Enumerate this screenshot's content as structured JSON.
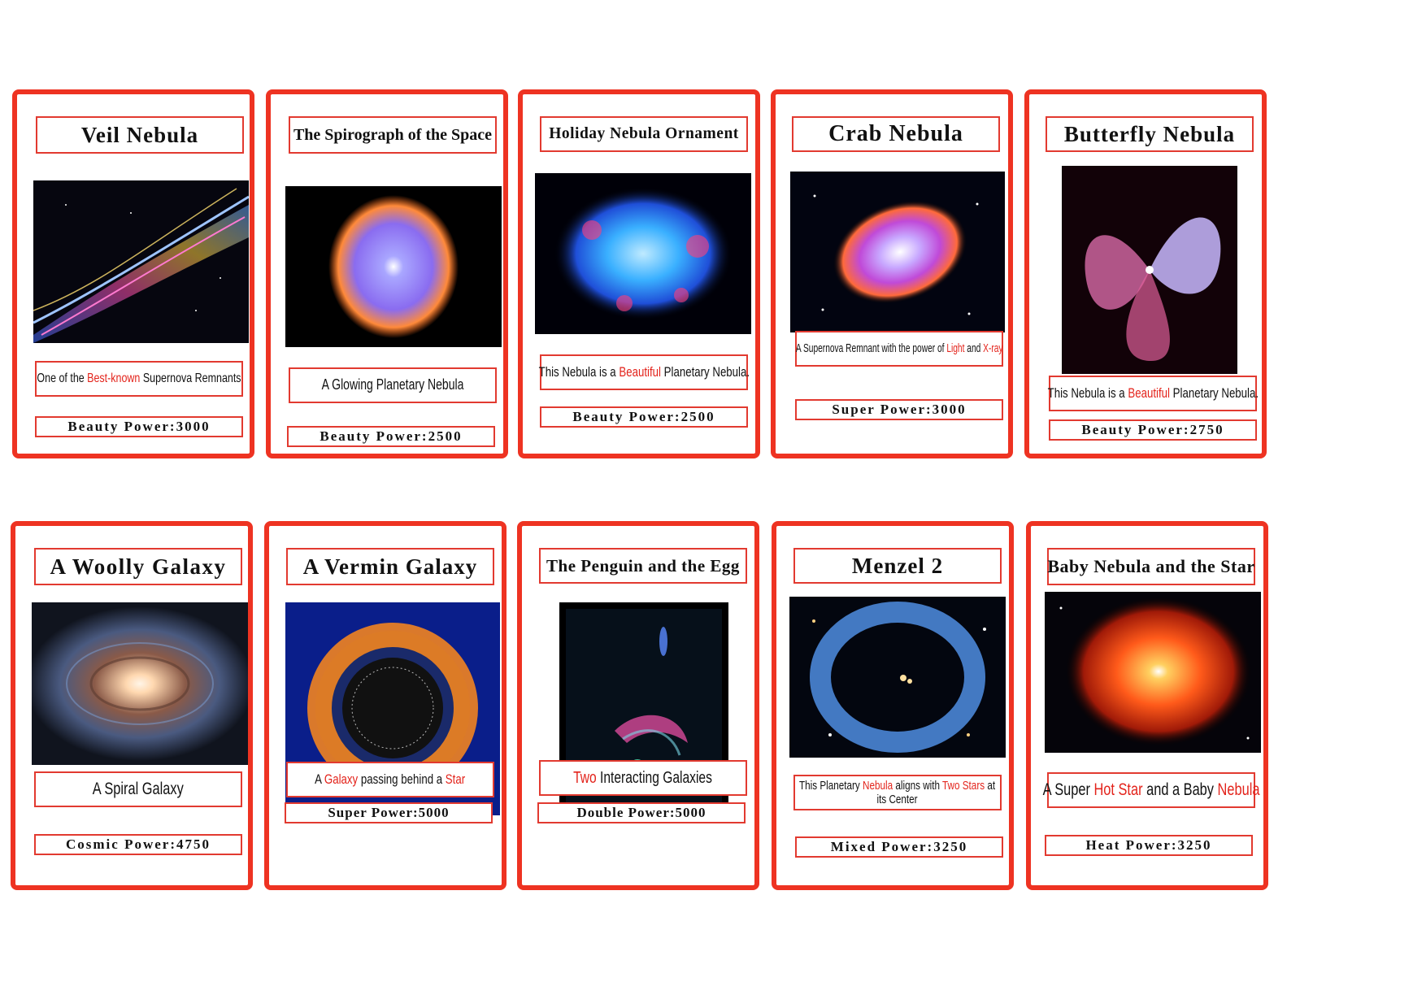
{
  "colors": {
    "card_border": "#ee3322",
    "box_border": "#e23a30",
    "highlight_text": "#e3231b"
  },
  "cards": [
    {
      "title": "Veil Nebula",
      "desc": {
        "pre": "One of the ",
        "hl1": "Best-known",
        "mid": " Supernova Remnants",
        "hl2": "",
        "post": "",
        "line2": ""
      },
      "power": "Beauty Power:3000",
      "image_alt": "Veil Nebula image"
    },
    {
      "title": "The Spirograph of the Space",
      "desc": {
        "pre": "A Glowing Planetary Nebula",
        "hl1": "",
        "mid": "",
        "hl2": "",
        "post": "",
        "line2": ""
      },
      "power": "Beauty Power:2500",
      "image_alt": "Spirograph Nebula image"
    },
    {
      "title": "Holiday Nebula Ornament",
      "desc": {
        "pre": "This Nebula is a ",
        "hl1": "Beautiful",
        "mid": " Planetary Nebula.",
        "hl2": "",
        "post": "",
        "line2": ""
      },
      "power": "Beauty Power:2500",
      "image_alt": "Holiday Nebula image"
    },
    {
      "title": "Crab Nebula",
      "desc": {
        "pre": "A Supernova Remnant with the power of ",
        "hl1": "Light",
        "mid": " and ",
        "hl2": "X-ray",
        "post": "",
        "line2": ""
      },
      "power": "Super Power:3000",
      "image_alt": "Crab Nebula image"
    },
    {
      "title": "Butterfly Nebula",
      "desc": {
        "pre": "This Nebula is a ",
        "hl1": "Beautiful",
        "mid": " Planetary Nebula.",
        "hl2": "",
        "post": "",
        "line2": ""
      },
      "power": "Beauty Power:2750",
      "image_alt": "Butterfly Nebula image"
    },
    {
      "title": "A Woolly Galaxy",
      "desc": {
        "pre": "A Spiral Galaxy",
        "hl1": "",
        "mid": "",
        "hl2": "",
        "post": "",
        "line2": ""
      },
      "power": "Cosmic Power:4750",
      "image_alt": "Woolly Galaxy image"
    },
    {
      "title": "A Vermin Galaxy",
      "desc": {
        "pre": "A ",
        "hl1": "Galaxy",
        "mid": " passing behind a ",
        "hl2": "Star",
        "post": "",
        "line2": ""
      },
      "power": "Super Power:5000",
      "image_alt": "Vermin Galaxy image"
    },
    {
      "title": "The Penguin and the Egg",
      "desc": {
        "pre": "",
        "hl1": "Two",
        "mid": " Interacting Galaxies",
        "hl2": "",
        "post": "",
        "line2": ""
      },
      "power": "Double Power:5000",
      "image_alt": "Penguin and Egg galaxies image"
    },
    {
      "title": "Menzel 2",
      "desc": {
        "pre": "This Planetary ",
        "hl1": "Nebula",
        "mid": " aligns with ",
        "hl2": "Two Stars",
        "post": " at",
        "line2": "its Center"
      },
      "power": "Mixed Power:3250",
      "image_alt": "Menzel 2 image"
    },
    {
      "title": "Baby Nebula and the Star",
      "desc": {
        "pre": "A Super ",
        "hl1": "Hot Star",
        "mid": " and a Baby ",
        "hl2": "Nebula",
        "post": "",
        "line2": ""
      },
      "power": "Heat Power:3250",
      "image_alt": "Baby Nebula image"
    }
  ]
}
